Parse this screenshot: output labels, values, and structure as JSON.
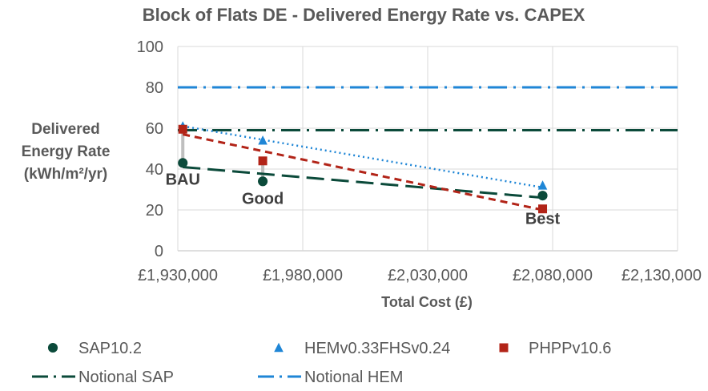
{
  "chart_data": {
    "type": "scatter",
    "title": "Block of Flats DE - Delivered Energy Rate vs. CAPEX",
    "xlabel": "Total Cost (£)",
    "ylabel_lines": [
      "Delivered",
      "Energy Rate",
      "(kWh/m²/yr)"
    ],
    "xlim": [
      1930000,
      2130000
    ],
    "ylim": [
      0,
      100
    ],
    "x_ticks": [
      1930000,
      1980000,
      2030000,
      2080000,
      2130000
    ],
    "x_tick_labels": [
      "£1,930,000",
      "£1,980,000",
      "£2,030,000",
      "£2,080,000",
      "£2,130,000"
    ],
    "y_ticks": [
      0,
      20,
      40,
      60,
      80,
      100
    ],
    "y_tick_labels": [
      "0",
      "20",
      "40",
      "60",
      "80",
      "100"
    ],
    "grid": true,
    "legend_position": "bottom",
    "annotations": [
      {
        "text": "BAU",
        "x": 1932000,
        "y": 43
      },
      {
        "text": "Good",
        "x": 1964000,
        "y": 34
      },
      {
        "text": "Best",
        "x": 2076000,
        "y": 21
      }
    ],
    "series": [
      {
        "name": "SAP10.2",
        "marker": "circle",
        "color": "#0b4a3a",
        "points": [
          {
            "x": 1932000,
            "y": 43
          },
          {
            "x": 1964000,
            "y": 34
          },
          {
            "x": 2076000,
            "y": 27
          }
        ],
        "trendline": {
          "from": [
            1932000,
            41
          ],
          "to": [
            2076000,
            26
          ],
          "color": "#0b4a3a",
          "dash": "long-dash"
        }
      },
      {
        "name": "HEMv0.33FHSv0.24",
        "marker": "triangle",
        "color": "#1f86d6",
        "points": [
          {
            "x": 1932000,
            "y": 61
          },
          {
            "x": 1964000,
            "y": 54
          },
          {
            "x": 2076000,
            "y": 32
          }
        ],
        "trendline": {
          "from": [
            1932000,
            61
          ],
          "to": [
            2076000,
            31
          ],
          "color": "#1f86d6",
          "dash": "dotted"
        }
      },
      {
        "name": "PHPPv10.6",
        "marker": "square",
        "color": "#b22418",
        "points": [
          {
            "x": 1932000,
            "y": 59.5
          },
          {
            "x": 1964000,
            "y": 44
          },
          {
            "x": 2076000,
            "y": 20.5
          }
        ],
        "trendline": {
          "from": [
            1932000,
            57
          ],
          "to": [
            2076000,
            20
          ],
          "color": "#b22418",
          "dash": "dashed"
        }
      }
    ],
    "reference_lines": [
      {
        "name": "Notional SAP",
        "y": 59,
        "color": "#0b4a3a",
        "dash": "dash-dot"
      },
      {
        "name": "Notional HEM",
        "y": 80,
        "color": "#1f86d6",
        "dash": "dash-dot"
      }
    ],
    "error_bars": [
      {
        "x": 1932000,
        "from": 43,
        "to": 59
      },
      {
        "x": 1964000,
        "from": 34,
        "to": 44
      }
    ],
    "legend": [
      {
        "label": "SAP10.2",
        "marker": "circle",
        "color": "#0b4a3a"
      },
      {
        "label": "HEMv0.33FHSv0.24",
        "marker": "triangle",
        "color": "#1f86d6"
      },
      {
        "label": "PHPPv10.6",
        "marker": "square",
        "color": "#b22418"
      },
      {
        "label": "Notional SAP",
        "marker": "dash-dot",
        "color": "#0b4a3a"
      },
      {
        "label": "Notional HEM",
        "marker": "dash-dot",
        "color": "#1f86d6"
      }
    ]
  }
}
